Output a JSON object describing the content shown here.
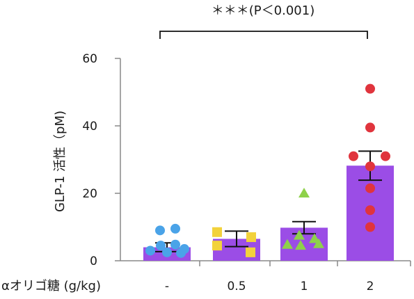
{
  "chart_data": {
    "type": "bar",
    "ylabel": "GLP-1 活性（pM)",
    "xlabel": "αオリゴ糖 (g/kg)",
    "categories": [
      "-",
      "0.5",
      "1",
      "2"
    ],
    "ylim": [
      0,
      60
    ],
    "yticks": [
      0,
      20,
      40,
      60
    ],
    "means": [
      4.0,
      6.5,
      9.8,
      28.2
    ],
    "sem": [
      1.3,
      2.3,
      1.8,
      4.3
    ],
    "points": [
      [
        9.5,
        9.0,
        4.5,
        4.8,
        3.5,
        3.0,
        2.5,
        2.3
      ],
      [
        8.5,
        7.0,
        4.5,
        2.5
      ],
      [
        20.0,
        7.5,
        6.5,
        5.0,
        4.8,
        4.5
      ],
      [
        51.0,
        39.5,
        31.0,
        31.0,
        28.0,
        21.5,
        15.0,
        10.0
      ]
    ],
    "marker_shapes": [
      "circle",
      "square",
      "triangle",
      "circle"
    ],
    "marker_colors": [
      "#4aa3e8",
      "#f2d23c",
      "#8ed14a",
      "#e0343d"
    ],
    "bar_color": "#9b4de6",
    "significance": {
      "label": "＊＊＊(P＜0.001)",
      "from": "-",
      "to": "2"
    }
  }
}
